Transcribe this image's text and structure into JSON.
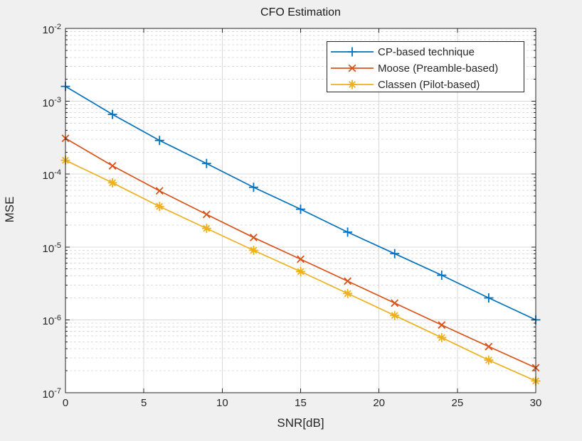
{
  "figure": {
    "background_color": "#f0f0f0",
    "plot_background_color": "#ffffff",
    "axes_color": "#262626",
    "major_grid_color": "#d9d9d9",
    "minor_grid_color": "#dcdcdc"
  },
  "chart_data": {
    "type": "line",
    "title": "CFO Estimation",
    "xlabel": "SNR[dB]",
    "ylabel": "MSE",
    "x_axis": {
      "min": 0,
      "max": 30,
      "ticks": [
        0,
        5,
        10,
        15,
        20,
        25,
        30
      ],
      "scale": "linear"
    },
    "y_axis": {
      "scale": "log",
      "min_exponent": -7,
      "max_exponent": -2,
      "tick_exponents": [
        -2,
        -3,
        -4,
        -5,
        -6,
        -7
      ],
      "tick_base": "10"
    },
    "grid": {
      "major": true,
      "minor_horizontal_dashed": true
    },
    "legend_position": "top-right-inside",
    "x": [
      0,
      3,
      6,
      9,
      12,
      15,
      18,
      21,
      24,
      27,
      30
    ],
    "series": [
      {
        "name": "CP-based technique",
        "color": "#0072BD",
        "marker": "plus",
        "values": [
          0.0016,
          0.00066,
          0.00029,
          0.00014,
          6.6e-05,
          3.3e-05,
          1.6e-05,
          8.1e-06,
          4.1e-06,
          2e-06,
          1e-06
        ]
      },
      {
        "name": "Moose (Preamble-based)",
        "color": "#D95319",
        "marker": "cross",
        "values": [
          0.00031,
          0.00013,
          5.9e-05,
          2.8e-05,
          1.35e-05,
          6.8e-06,
          3.4e-06,
          1.7e-06,
          8.5e-07,
          4.3e-07,
          2.2e-07
        ]
      },
      {
        "name": "Classen (Pilot-based)",
        "color": "#EDB120",
        "marker": "asterisk",
        "values": [
          0.000155,
          7.6e-05,
          3.6e-05,
          1.8e-05,
          9e-06,
          4.6e-06,
          2.3e-06,
          1.15e-06,
          5.7e-07,
          2.8e-07,
          1.45e-07
        ]
      }
    ]
  }
}
